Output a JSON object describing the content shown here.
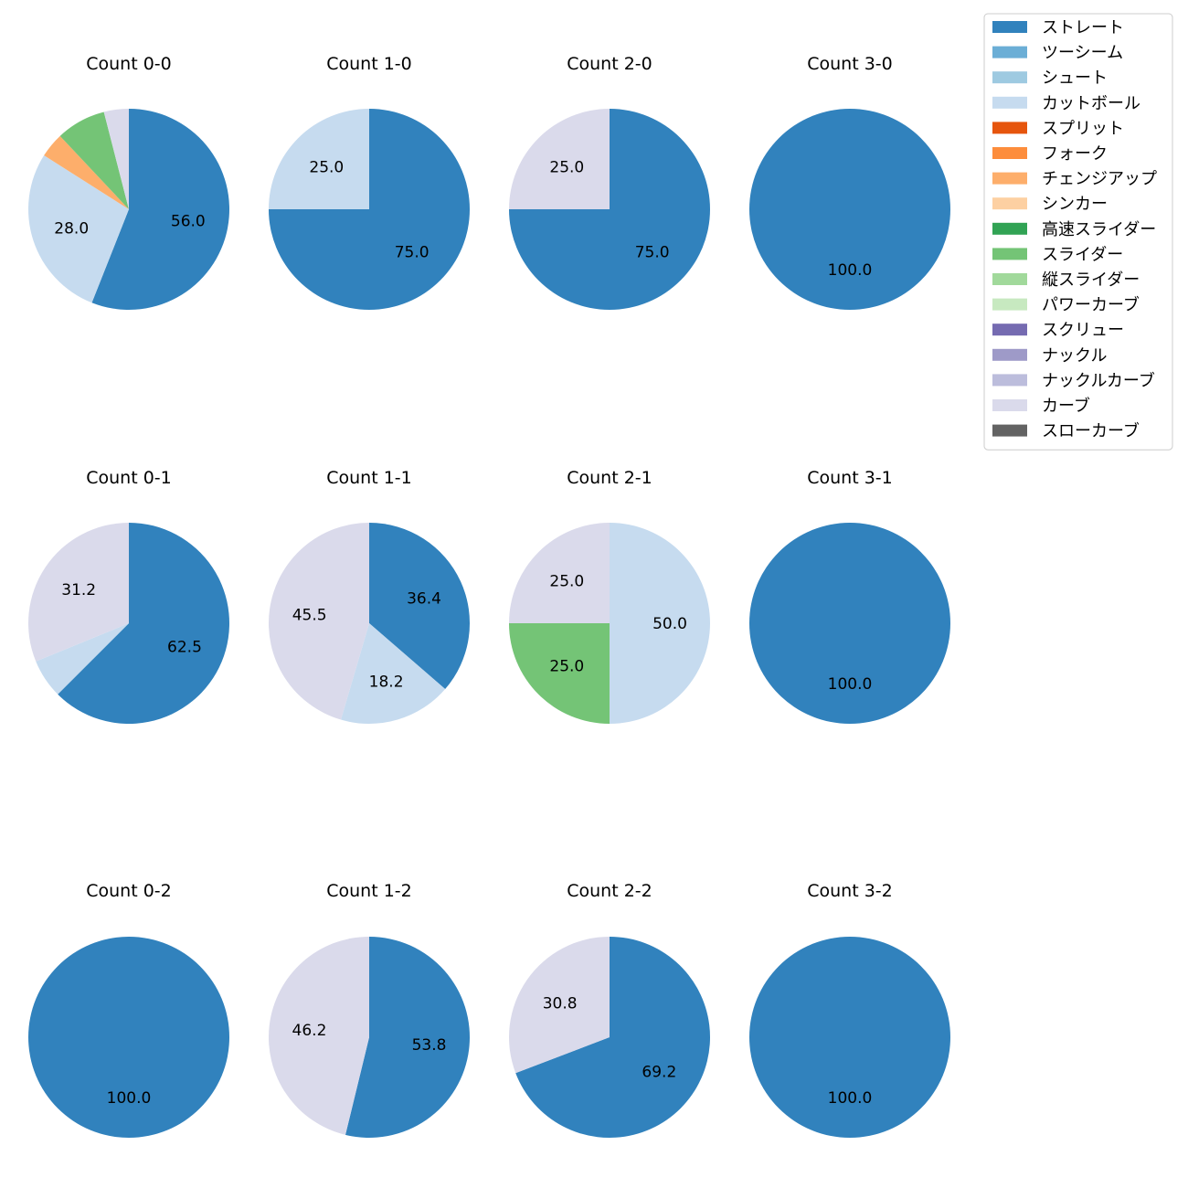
{
  "chart_data": {
    "type": "pie",
    "legend": {
      "position": "top-right",
      "entries": [
        {
          "name": "ストレート",
          "color": "#3182bd"
        },
        {
          "name": "ツーシーム",
          "color": "#6baed6"
        },
        {
          "name": "シュート",
          "color": "#9ecae1"
        },
        {
          "name": "カットボール",
          "color": "#c6dbef"
        },
        {
          "name": "スプリット",
          "color": "#e6550d"
        },
        {
          "name": "フォーク",
          "color": "#fd8d3c"
        },
        {
          "name": "チェンジアップ",
          "color": "#fdae6b"
        },
        {
          "name": "シンカー",
          "color": "#fdd0a2"
        },
        {
          "name": "高速スライダー",
          "color": "#31a354"
        },
        {
          "name": "スライダー",
          "color": "#74c476"
        },
        {
          "name": "縦スライダー",
          "color": "#a1d99b"
        },
        {
          "name": "パワーカーブ",
          "color": "#c7e9c0"
        },
        {
          "name": "スクリュー",
          "color": "#756bb1"
        },
        {
          "name": "ナックル",
          "color": "#9e9ac8"
        },
        {
          "name": "ナックルカーブ",
          "color": "#bcbddc"
        },
        {
          "name": "カーブ",
          "color": "#dadaeb"
        },
        {
          "name": "スローカーブ",
          "color": "#636363"
        }
      ]
    },
    "pies": [
      {
        "title": "Count 0-0",
        "slices": [
          {
            "pitch": "ストレート",
            "value": 56.0,
            "label": "56.0"
          },
          {
            "pitch": "カットボール",
            "value": 28.0,
            "label": "28.0"
          },
          {
            "pitch": "チェンジアップ",
            "value": 4.0,
            "label": ""
          },
          {
            "pitch": "スライダー",
            "value": 8.0,
            "label": ""
          },
          {
            "pitch": "カーブ",
            "value": 4.0,
            "label": ""
          }
        ]
      },
      {
        "title": "Count 1-0",
        "slices": [
          {
            "pitch": "ストレート",
            "value": 75.0,
            "label": "75.0"
          },
          {
            "pitch": "カットボール",
            "value": 25.0,
            "label": "25.0"
          }
        ]
      },
      {
        "title": "Count 2-0",
        "slices": [
          {
            "pitch": "ストレート",
            "value": 75.0,
            "label": "75.0"
          },
          {
            "pitch": "カーブ",
            "value": 25.0,
            "label": "25.0"
          }
        ]
      },
      {
        "title": "Count 3-0",
        "slices": [
          {
            "pitch": "ストレート",
            "value": 100.0,
            "label": "100.0"
          }
        ]
      },
      {
        "title": "Count 0-1",
        "slices": [
          {
            "pitch": "ストレート",
            "value": 62.5,
            "label": "62.5"
          },
          {
            "pitch": "カットボール",
            "value": 6.3,
            "label": ""
          },
          {
            "pitch": "カーブ",
            "value": 31.2,
            "label": "31.2"
          }
        ]
      },
      {
        "title": "Count 1-1",
        "slices": [
          {
            "pitch": "ストレート",
            "value": 36.4,
            "label": "36.4"
          },
          {
            "pitch": "カットボール",
            "value": 18.2,
            "label": "18.2"
          },
          {
            "pitch": "カーブ",
            "value": 45.5,
            "label": "45.5"
          }
        ]
      },
      {
        "title": "Count 2-1",
        "slices": [
          {
            "pitch": "カットボール",
            "value": 50.0,
            "label": "50.0"
          },
          {
            "pitch": "スライダー",
            "value": 25.0,
            "label": "25.0"
          },
          {
            "pitch": "カーブ",
            "value": 25.0,
            "label": "25.0"
          }
        ]
      },
      {
        "title": "Count 3-1",
        "slices": [
          {
            "pitch": "ストレート",
            "value": 100.0,
            "label": "100.0"
          }
        ]
      },
      {
        "title": "Count 0-2",
        "slices": [
          {
            "pitch": "ストレート",
            "value": 100.0,
            "label": "100.0"
          }
        ]
      },
      {
        "title": "Count 1-2",
        "slices": [
          {
            "pitch": "ストレート",
            "value": 53.8,
            "label": "53.8"
          },
          {
            "pitch": "カーブ",
            "value": 46.2,
            "label": "46.2"
          }
        ]
      },
      {
        "title": "Count 2-2",
        "slices": [
          {
            "pitch": "ストレート",
            "value": 69.2,
            "label": "69.2"
          },
          {
            "pitch": "カーブ",
            "value": 30.8,
            "label": "30.8"
          }
        ]
      },
      {
        "title": "Count 3-2",
        "slices": [
          {
            "pitch": "ストレート",
            "value": 100.0,
            "label": "100.0"
          }
        ]
      }
    ]
  }
}
